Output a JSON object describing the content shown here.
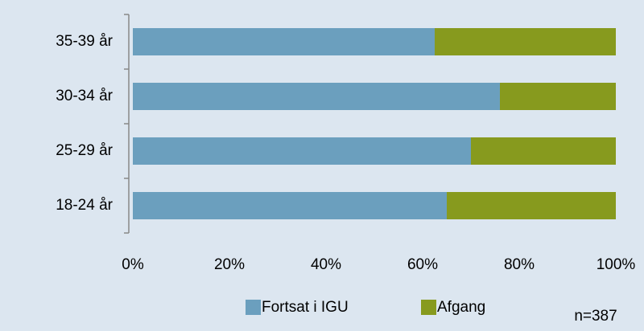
{
  "chart_data": {
    "type": "stacked_bar_horizontal",
    "categories": [
      "35-39 år",
      "30-34 år",
      "25-29 år",
      "18-24 år"
    ],
    "series": [
      {
        "name": "Fortsat i IGU",
        "color": "#6b9fbe",
        "values": [
          62.5,
          76,
          70,
          65
        ]
      },
      {
        "name": "Afgang",
        "color": "#879a1e",
        "values": [
          37.5,
          24,
          30,
          35
        ]
      }
    ],
    "xlim": [
      0,
      100
    ],
    "xticks": [
      {
        "value": 0,
        "label": "0%"
      },
      {
        "value": 20,
        "label": "20%"
      },
      {
        "value": 40,
        "label": "40%"
      },
      {
        "value": 60,
        "label": "60%"
      },
      {
        "value": 80,
        "label": "80%"
      },
      {
        "value": 100,
        "label": "100%"
      }
    ],
    "annotation": "n=387"
  }
}
